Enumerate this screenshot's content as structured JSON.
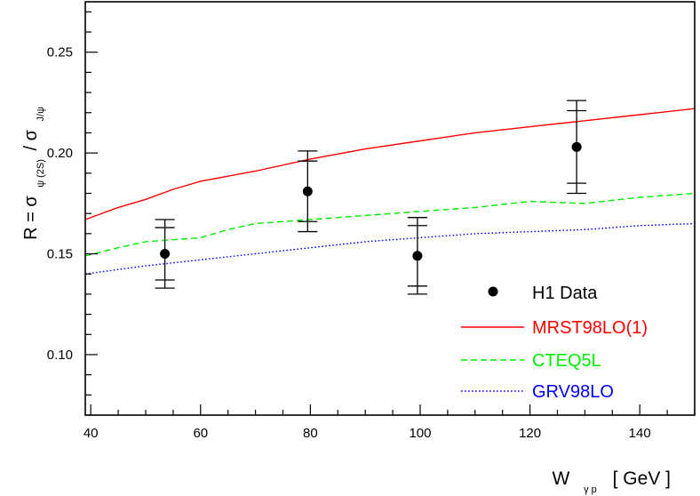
{
  "chart_data": {
    "type": "scatter",
    "title": "",
    "xlabel": {
      "main": "W",
      "subscript": "γ p",
      "unit": "[ GeV ]"
    },
    "ylabel": {
      "lhs": "R = σ",
      "sub_num": "ψ (2S)",
      "mid": " / σ",
      "sub_den": "J/ψ"
    },
    "xlim": [
      39,
      150
    ],
    "ylim": [
      0.07,
      0.275
    ],
    "x_ticks": [
      {
        "value": 40,
        "label": "40"
      },
      {
        "value": 60,
        "label": "60"
      },
      {
        "value": 80,
        "label": "80"
      },
      {
        "value": 100,
        "label": "100"
      },
      {
        "value": 120,
        "label": "120"
      },
      {
        "value": 140,
        "label": "140"
      }
    ],
    "y_ticks": [
      {
        "value": 0.1,
        "label": "0.10"
      },
      {
        "value": 0.15,
        "label": "0.15"
      },
      {
        "value": 0.2,
        "label": "0.20"
      },
      {
        "value": 0.25,
        "label": "0.25"
      }
    ],
    "x_minor_step": 5,
    "y_minor_step": 0.01,
    "grid": false,
    "legend": {
      "placement": "bottom-right",
      "entries": [
        {
          "label": "H1 Data",
          "style": "marker",
          "color": "#000000"
        },
        {
          "label": "MRST98LO(1)",
          "style": "solid",
          "color": "#ff0000"
        },
        {
          "label": "CTEQ5L",
          "style": "dashed",
          "color": "#00ee00"
        },
        {
          "label": "GRV98LO",
          "style": "dotted",
          "color": "#0000ff"
        }
      ]
    },
    "data_points": [
      {
        "x": 53.5,
        "y": 0.15,
        "stat_lo": 0.137,
        "stat_hi": 0.163,
        "tot_lo": 0.133,
        "tot_hi": 0.167
      },
      {
        "x": 79.5,
        "y": 0.181,
        "stat_lo": 0.166,
        "stat_hi": 0.196,
        "tot_lo": 0.161,
        "tot_hi": 0.201
      },
      {
        "x": 99.5,
        "y": 0.149,
        "stat_lo": 0.134,
        "stat_hi": 0.164,
        "tot_lo": 0.13,
        "tot_hi": 0.168
      },
      {
        "x": 128.5,
        "y": 0.203,
        "stat_lo": 0.185,
        "stat_hi": 0.221,
        "tot_lo": 0.18,
        "tot_hi": 0.226
      }
    ],
    "series": [
      {
        "name": "MRST98LO(1)",
        "color": "#ff0000",
        "dash": "solid",
        "x": [
          39,
          45,
          50,
          55,
          60,
          70,
          80,
          90,
          100,
          110,
          120,
          130,
          140,
          150
        ],
        "values": [
          0.167,
          0.173,
          0.177,
          0.182,
          0.186,
          0.191,
          0.197,
          0.202,
          0.206,
          0.21,
          0.213,
          0.216,
          0.219,
          0.222
        ]
      },
      {
        "name": "CTEQ5L",
        "color": "#00ee00",
        "dash": "dashed",
        "x": [
          39,
          45,
          50,
          55,
          60,
          65,
          70,
          80,
          90,
          100,
          110,
          120,
          130,
          140,
          150
        ],
        "values": [
          0.149,
          0.153,
          0.156,
          0.157,
          0.158,
          0.162,
          0.165,
          0.167,
          0.169,
          0.171,
          0.173,
          0.176,
          0.175,
          0.178,
          0.18
        ]
      },
      {
        "name": "GRV98LO",
        "color": "#0000ff",
        "dash": "dotted",
        "x": [
          39,
          50,
          60,
          70,
          80,
          90,
          100,
          110,
          120,
          130,
          140,
          150
        ],
        "values": [
          0.14,
          0.144,
          0.147,
          0.15,
          0.153,
          0.156,
          0.158,
          0.16,
          0.161,
          0.162,
          0.164,
          0.165
        ]
      }
    ]
  }
}
